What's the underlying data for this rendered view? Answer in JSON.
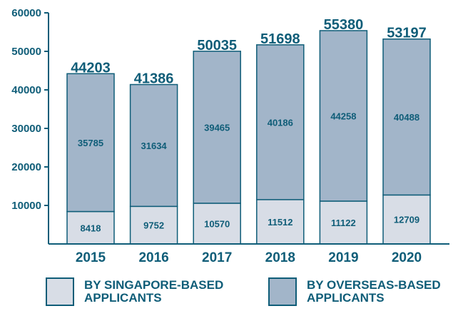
{
  "chart_data": {
    "type": "bar",
    "stacked": true,
    "categories": [
      "2015",
      "2016",
      "2017",
      "2018",
      "2019",
      "2020"
    ],
    "series": [
      {
        "name": "BY SINGAPORE-BASED APPLICANTS",
        "values": [
          8418,
          9752,
          10570,
          11512,
          11122,
          12709
        ],
        "color": "#d8dde6"
      },
      {
        "name": "BY OVERSEAS-BASED APPLICANTS",
        "values": [
          35785,
          31634,
          39465,
          40186,
          44258,
          40488
        ],
        "color": "#a2b5c9"
      }
    ],
    "totals": [
      44203,
      41386,
      50035,
      51698,
      55380,
      53197
    ],
    "ylim": [
      0,
      60000
    ],
    "yticks": [
      "10000",
      "20000",
      "30000",
      "40000",
      "50000",
      "60000"
    ],
    "grid": false,
    "legend_position": "bottom",
    "axis_color": "#0f5d78",
    "label_color": "#0f5d78"
  },
  "legend": {
    "singapore_label": "BY SINGAPORE-BASED\nAPPLICANTS",
    "overseas_label": "BY OVERSEAS-BASED\nAPPLICANTS"
  }
}
